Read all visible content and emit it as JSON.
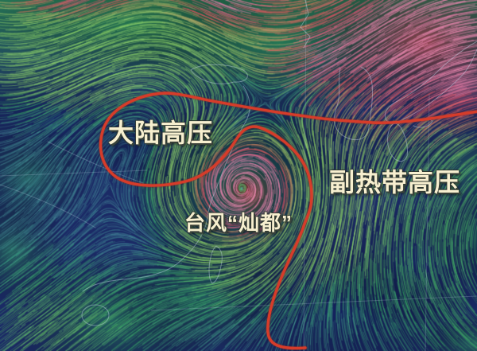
{
  "map": {
    "labels": [
      {
        "id": "continental-high",
        "text": "大陆高压"
      },
      {
        "id": "subtropical-high",
        "text": "副热带高压"
      },
      {
        "id": "typhoon-chanthu",
        "text": "台风“灿都”"
      }
    ],
    "colors": {
      "sea": "#1b2a66",
      "wind_calm": "#4fa8a8",
      "wind_green": "#3cb46a",
      "wind_fresh": "#8ed36a",
      "wind_strong": "#d4605c",
      "wind_severe": "#dd5270",
      "wind_extreme": "#e583ab",
      "boundary": "#d63c2a",
      "label_text": "#f7efcf",
      "coastline": "#ccdaee"
    }
  }
}
